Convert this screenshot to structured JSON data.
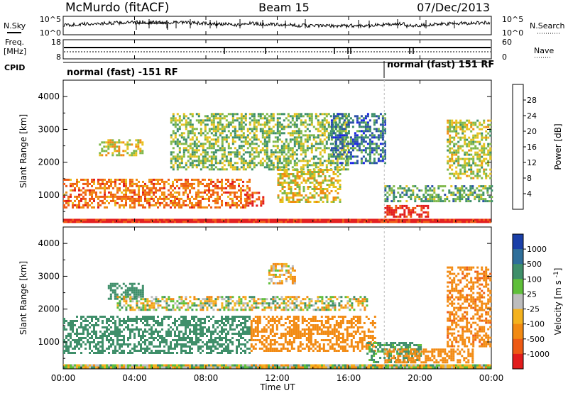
{
  "header": {
    "title": "McMurdo (fitACF)",
    "beam": "Beam 15",
    "date": "07/Dec/2013"
  },
  "noise_panel": {
    "left_label": "N.Sky",
    "right_label": "N.Search",
    "left_ticks": [
      "10^5",
      "10^0"
    ],
    "right_ticks": [
      "10^5",
      "10^0"
    ]
  },
  "freq_panel": {
    "left_label_line1": "Freq.",
    "left_label_line2": "[MHz]",
    "left_ticks": [
      "18",
      "8"
    ],
    "right_label": "Nave",
    "right_ticks": [
      "60",
      "0"
    ]
  },
  "cpid_panel": {
    "label": "CPID",
    "modes": [
      {
        "text": "normal (fast) -151 RF",
        "start_hour": 0
      },
      {
        "text": "normal (fast) 151 RF",
        "start_hour": 18
      }
    ]
  },
  "time_axis": {
    "label": "Time UT",
    "ticks": [
      "00:00",
      "04:00",
      "08:00",
      "12:00",
      "16:00",
      "20:00",
      "00:00"
    ]
  },
  "panels": {
    "power": {
      "ylabel": "Slant Range [km]",
      "yticks": [
        "1000",
        "2000",
        "3000",
        "4000"
      ],
      "cbar_label": "Power [dB]",
      "cbar_ticks": [
        "4",
        "8",
        "12",
        "16",
        "20",
        "24",
        "28"
      ],
      "cbar_colors": [
        "#1a24e6",
        "#2a4fa8",
        "#3d8f6a",
        "#7fb84a",
        "#e6c21e",
        "#f08c12",
        "#ef5a14",
        "#e21c1c"
      ]
    },
    "velocity": {
      "ylabel": "Slant Range [km]",
      "yticks": [
        "1000",
        "2000",
        "3000",
        "4000"
      ],
      "cbar_label": "Velocity [m s^-1]",
      "cbar_ticks": [
        "1000",
        "500",
        "100",
        "25",
        "-25",
        "-100",
        "-500",
        "-1000"
      ],
      "cbar_colors": [
        "#1a3fa8",
        "#2f6f9a",
        "#3f8f6a",
        "#5fbf3a",
        "#bdbdbd",
        "#f4b21e",
        "#f28a12",
        "#ee5a14",
        "#e21c1c"
      ]
    }
  },
  "chart_data": [
    {
      "type": "heatmap",
      "title": "Power",
      "xlabel": "Time UT",
      "ylabel": "Slant Range [km]",
      "xlim": [
        0,
        24
      ],
      "ylim": [
        180,
        4500
      ],
      "colorbar": {
        "label": "Power [dB]",
        "range": [
          0,
          32
        ],
        "ticks": [
          4,
          8,
          12,
          16,
          20,
          24,
          28
        ]
      },
      "scatter_regions": [
        {
          "t0": 0,
          "t1": 24,
          "r0": 200,
          "r1": 280,
          "power_db": 30
        },
        {
          "t0": 0,
          "t1": 10.5,
          "r0": 600,
          "r1": 1500,
          "power_db": 24
        },
        {
          "t0": 2,
          "t1": 4.5,
          "r0": 2200,
          "r1": 2700,
          "power_db": 18
        },
        {
          "t0": 6,
          "t1": 16,
          "r0": 1800,
          "r1": 3500,
          "power_db": 14
        },
        {
          "t0": 10.2,
          "t1": 11.2,
          "r0": 700,
          "r1": 1100,
          "power_db": 28
        },
        {
          "t0": 12,
          "t1": 15.5,
          "r0": 800,
          "r1": 1800,
          "power_db": 18
        },
        {
          "t0": 15,
          "t1": 18,
          "r0": 2000,
          "r1": 3500,
          "power_db": 8
        },
        {
          "t0": 18,
          "t1": 20.5,
          "r0": 350,
          "r1": 700,
          "power_db": 30
        },
        {
          "t0": 18,
          "t1": 24,
          "r0": 800,
          "r1": 1300,
          "power_db": 12
        },
        {
          "t0": 21.5,
          "t1": 24,
          "r0": 1500,
          "r1": 3300,
          "power_db": 16
        }
      ]
    },
    {
      "type": "heatmap",
      "title": "Velocity",
      "xlabel": "Time UT",
      "ylabel": "Slant Range [km]",
      "xlim": [
        0,
        24
      ],
      "ylim": [
        180,
        4500
      ],
      "colorbar": {
        "label": "Velocity [m s^-1]",
        "ticks": [
          1000,
          500,
          100,
          25,
          -25,
          -100,
          -500,
          -1000
        ]
      },
      "scatter_regions": [
        {
          "t0": 0,
          "t1": 24,
          "r0": 200,
          "r1": 320,
          "velocity": 0
        },
        {
          "t0": 0,
          "t1": 10.5,
          "r0": 650,
          "r1": 1800,
          "velocity": 300
        },
        {
          "t0": 2.5,
          "t1": 4.5,
          "r0": 2300,
          "r1": 2800,
          "velocity": 300
        },
        {
          "t0": 3,
          "t1": 17,
          "r0": 2000,
          "r1": 2400,
          "velocity": 0
        },
        {
          "t0": 10.5,
          "t1": 17.5,
          "r0": 700,
          "r1": 1800,
          "velocity": -250
        },
        {
          "t0": 11.5,
          "t1": 13,
          "r0": 2800,
          "r1": 3400,
          "velocity": -100
        },
        {
          "t0": 17,
          "t1": 20,
          "r0": 400,
          "r1": 1000,
          "velocity": 200
        },
        {
          "t0": 18,
          "t1": 23,
          "r0": 400,
          "r1": 800,
          "velocity": -250
        },
        {
          "t0": 21.5,
          "t1": 24,
          "r0": 900,
          "r1": 3300,
          "velocity": -400
        }
      ]
    }
  ]
}
